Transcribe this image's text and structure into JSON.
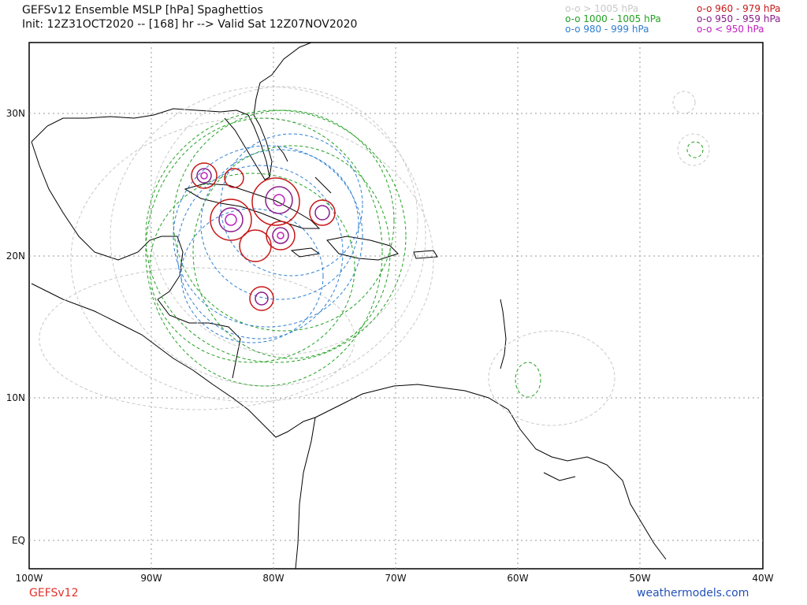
{
  "header": {
    "title": "GEFSv12 Ensemble MSLP [hPa] Spaghettios",
    "subtitle": "Init: 12Z31OCT2020 -- [168] hr --> Valid Sat 12Z07NOV2020"
  },
  "legend": [
    {
      "label": "o-o > 1005 hPa",
      "color": "#c8c8c8"
    },
    {
      "label": "o-o 1000 - 1005 hPa",
      "color": "#22a022"
    },
    {
      "label": "o-o 980 - 999 hPa",
      "color": "#2e7fd0"
    },
    {
      "label": "o-o 960 - 979 hPa",
      "color": "#c81818"
    },
    {
      "label": "o-o 950 - 959 hPa",
      "color": "#8a1c8a"
    },
    {
      "label": "o-o < 950 hPa",
      "color": "#c020c0"
    }
  ],
  "axes": {
    "x_ticks": [
      "100W",
      "90W",
      "80W",
      "70W",
      "60W",
      "50W",
      "40W"
    ],
    "y_ticks": [
      "30N",
      "20N",
      "10N",
      "EQ"
    ]
  },
  "footer": {
    "model": "GEFSv12",
    "site": "weathermodels.com"
  }
}
